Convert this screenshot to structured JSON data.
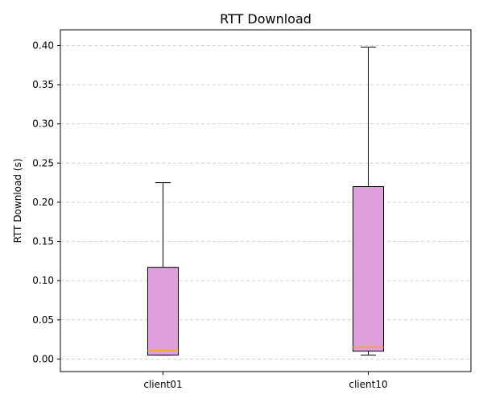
{
  "chart_data": {
    "type": "box",
    "title": "RTT Download",
    "xlabel": "",
    "ylabel": "RTT Download (s)",
    "ylim": [
      -0.016,
      0.42
    ],
    "yticks": [
      0.0,
      0.05,
      0.1,
      0.15,
      0.2,
      0.25,
      0.3,
      0.35,
      0.4
    ],
    "ytick_labels": [
      "0.00",
      "0.05",
      "0.10",
      "0.15",
      "0.20",
      "0.25",
      "0.30",
      "0.35",
      "0.40"
    ],
    "grid": true,
    "categories": [
      "client01",
      "client10"
    ],
    "boxes": [
      {
        "category": "client01",
        "whisker_low": 0.005,
        "q1": 0.005,
        "median": 0.011,
        "q3": 0.117,
        "whisker_high": 0.225
      },
      {
        "category": "client10",
        "whisker_low": 0.005,
        "q1": 0.01,
        "median": 0.015,
        "q3": 0.22,
        "whisker_high": 0.398
      }
    ],
    "colors": {
      "box_fill": "#dda0dd",
      "box_edge": "#000000",
      "median": "#f5a623",
      "grid": "#cccccc"
    }
  }
}
